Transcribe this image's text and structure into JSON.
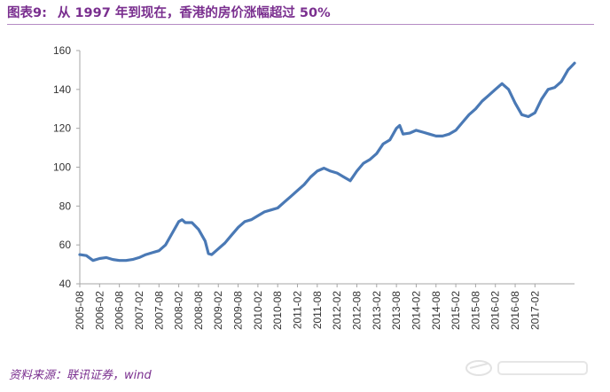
{
  "title": {
    "label": "图表9:",
    "text": "从 1997 年到现在，香港的房价涨幅超过 50%"
  },
  "source": "资料来源：联讯证券，wind",
  "watermark": "凤凰",
  "colors": {
    "line": "#4a79b5",
    "title": "#7a2f8f",
    "axis": "#a6a6a6"
  },
  "chart_data": {
    "type": "line",
    "title": "",
    "xlabel": "",
    "ylabel": "",
    "ylim": [
      40,
      160
    ],
    "yticks": [
      40,
      60,
      80,
      100,
      120,
      140,
      160
    ],
    "grid": false,
    "legend": "none",
    "xtick_labels": [
      "2005-08",
      "2006-02",
      "2006-08",
      "2007-02",
      "2007-08",
      "2008-02",
      "2008-08",
      "2009-02",
      "2009-08",
      "2010-02",
      "2010-08",
      "2011-02",
      "2011-08",
      "2012-02",
      "2012-08",
      "2013-02",
      "2013-08",
      "2014-02",
      "2014-08",
      "2015-02",
      "2015-08",
      "2016-02",
      "2016-08",
      "2017-02"
    ],
    "series": [
      {
        "values": [
          {
            "x": "2005-08",
            "y": 55
          },
          {
            "x": "2005-10",
            "y": 54.5
          },
          {
            "x": "2005-12",
            "y": 52
          },
          {
            "x": "2006-02",
            "y": 53
          },
          {
            "x": "2006-04",
            "y": 53.5
          },
          {
            "x": "2006-06",
            "y": 52.5
          },
          {
            "x": "2006-08",
            "y": 52
          },
          {
            "x": "2006-10",
            "y": 52
          },
          {
            "x": "2006-12",
            "y": 52.5
          },
          {
            "x": "2007-02",
            "y": 53.5
          },
          {
            "x": "2007-04",
            "y": 55
          },
          {
            "x": "2007-06",
            "y": 56
          },
          {
            "x": "2007-08",
            "y": 57
          },
          {
            "x": "2007-10",
            "y": 60
          },
          {
            "x": "2007-12",
            "y": 66
          },
          {
            "x": "2008-02",
            "y": 72
          },
          {
            "x": "2008-03",
            "y": 73
          },
          {
            "x": "2008-04",
            "y": 71.5
          },
          {
            "x": "2008-06",
            "y": 71.5
          },
          {
            "x": "2008-08",
            "y": 68
          },
          {
            "x": "2008-10",
            "y": 62
          },
          {
            "x": "2008-11",
            "y": 55.5
          },
          {
            "x": "2008-12",
            "y": 55
          },
          {
            "x": "2009-02",
            "y": 58
          },
          {
            "x": "2009-04",
            "y": 61
          },
          {
            "x": "2009-06",
            "y": 65
          },
          {
            "x": "2009-08",
            "y": 69
          },
          {
            "x": "2009-10",
            "y": 72
          },
          {
            "x": "2009-12",
            "y": 73
          },
          {
            "x": "2010-02",
            "y": 75
          },
          {
            "x": "2010-04",
            "y": 77
          },
          {
            "x": "2010-06",
            "y": 78
          },
          {
            "x": "2010-08",
            "y": 79
          },
          {
            "x": "2010-10",
            "y": 82
          },
          {
            "x": "2010-12",
            "y": 85
          },
          {
            "x": "2011-02",
            "y": 88
          },
          {
            "x": "2011-04",
            "y": 91
          },
          {
            "x": "2011-06",
            "y": 95
          },
          {
            "x": "2011-08",
            "y": 98
          },
          {
            "x": "2011-10",
            "y": 99.5
          },
          {
            "x": "2011-12",
            "y": 98
          },
          {
            "x": "2012-02",
            "y": 97
          },
          {
            "x": "2012-04",
            "y": 95
          },
          {
            "x": "2012-06",
            "y": 93
          },
          {
            "x": "2012-08",
            "y": 98
          },
          {
            "x": "2012-10",
            "y": 102
          },
          {
            "x": "2012-12",
            "y": 104
          },
          {
            "x": "2013-02",
            "y": 107
          },
          {
            "x": "2013-04",
            "y": 112
          },
          {
            "x": "2013-06",
            "y": 114
          },
          {
            "x": "2013-08",
            "y": 120
          },
          {
            "x": "2013-09",
            "y": 121.5
          },
          {
            "x": "2013-10",
            "y": 117
          },
          {
            "x": "2013-12",
            "y": 117.5
          },
          {
            "x": "2014-02",
            "y": 119
          },
          {
            "x": "2014-04",
            "y": 118
          },
          {
            "x": "2014-06",
            "y": 117
          },
          {
            "x": "2014-08",
            "y": 116
          },
          {
            "x": "2014-10",
            "y": 116
          },
          {
            "x": "2014-12",
            "y": 117
          },
          {
            "x": "2015-02",
            "y": 119
          },
          {
            "x": "2015-04",
            "y": 123
          },
          {
            "x": "2015-06",
            "y": 127
          },
          {
            "x": "2015-08",
            "y": 130
          },
          {
            "x": "2015-10",
            "y": 134
          },
          {
            "x": "2015-12",
            "y": 137
          },
          {
            "x": "2016-02",
            "y": 140
          },
          {
            "x": "2016-04",
            "y": 143
          },
          {
            "x": "2016-06",
            "y": 140
          },
          {
            "x": "2016-08",
            "y": 133
          },
          {
            "x": "2016-10",
            "y": 127
          },
          {
            "x": "2016-12",
            "y": 126
          },
          {
            "x": "2017-02",
            "y": 128
          },
          {
            "x": "2017-04",
            "y": 135
          },
          {
            "x": "2017-06",
            "y": 140
          },
          {
            "x": "2017-08",
            "y": 141
          },
          {
            "x": "2017-10",
            "y": 144
          },
          {
            "x": "2017-12",
            "y": 150
          },
          {
            "x": "2018-02",
            "y": 153.5
          }
        ]
      }
    ]
  }
}
